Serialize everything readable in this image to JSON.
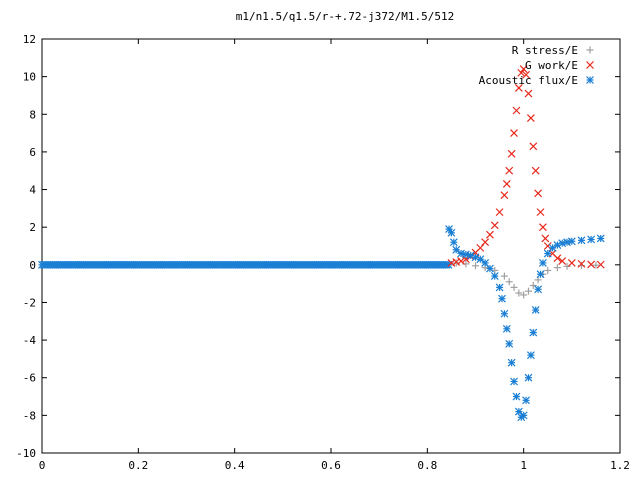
{
  "chart_data": {
    "type": "scatter",
    "title": "m1/n1.5/q1.5/r-+.72-j372/M1.5/512",
    "xlabel": "",
    "ylabel": "",
    "xlim": [
      0,
      1.2
    ],
    "ylim": [
      -10,
      12
    ],
    "x_ticks": [
      0,
      0.2,
      0.4,
      0.6,
      0.8,
      1,
      1.2
    ],
    "x_tick_labels": [
      "0",
      "0.2",
      "0.4",
      "0.6",
      "0.8",
      "1",
      "1.2"
    ],
    "y_ticks": [
      -10,
      -8,
      -6,
      -4,
      -2,
      0,
      2,
      4,
      6,
      8,
      10,
      12
    ],
    "y_tick_labels": [
      "-10",
      "-8",
      "-6",
      "-4",
      "-2",
      "0",
      "2",
      "4",
      "6",
      "8",
      "10",
      "12"
    ],
    "grid": false,
    "legend_position": "top-right",
    "series": [
      {
        "name": "R stress/E",
        "marker": "plus",
        "color": "#a0a0a0",
        "points": [
          [
            0.86,
            0.1
          ],
          [
            0.88,
            0.05
          ],
          [
            0.9,
            -0.05
          ],
          [
            0.92,
            -0.15
          ],
          [
            0.94,
            -0.3
          ],
          [
            0.96,
            -0.6
          ],
          [
            0.97,
            -0.9
          ],
          [
            0.98,
            -1.2
          ],
          [
            0.99,
            -1.5
          ],
          [
            1.0,
            -1.6
          ],
          [
            1.01,
            -1.4
          ],
          [
            1.02,
            -1.1
          ],
          [
            1.03,
            -0.8
          ],
          [
            1.04,
            -0.5
          ],
          [
            1.05,
            -0.3
          ],
          [
            1.07,
            -0.15
          ],
          [
            1.09,
            -0.08
          ],
          [
            1.12,
            -0.04
          ],
          [
            1.15,
            -0.02
          ]
        ]
      },
      {
        "name": "G work/E",
        "marker": "cross",
        "color": "#e8281c",
        "points": [
          [
            0.85,
            0.1
          ],
          [
            0.86,
            0.15
          ],
          [
            0.87,
            0.2
          ],
          [
            0.88,
            0.3
          ],
          [
            0.89,
            0.45
          ],
          [
            0.9,
            0.65
          ],
          [
            0.91,
            0.9
          ],
          [
            0.92,
            1.2
          ],
          [
            0.93,
            1.6
          ],
          [
            0.94,
            2.1
          ],
          [
            0.95,
            2.8
          ],
          [
            0.96,
            3.7
          ],
          [
            0.965,
            4.3
          ],
          [
            0.97,
            5.0
          ],
          [
            0.975,
            5.9
          ],
          [
            0.98,
            7.0
          ],
          [
            0.985,
            8.2
          ],
          [
            0.99,
            9.4
          ],
          [
            0.995,
            10.2
          ],
          [
            1.0,
            10.4
          ],
          [
            1.005,
            10.1
          ],
          [
            1.01,
            9.1
          ],
          [
            1.015,
            7.8
          ],
          [
            1.02,
            6.3
          ],
          [
            1.025,
            5.0
          ],
          [
            1.03,
            3.8
          ],
          [
            1.035,
            2.8
          ],
          [
            1.04,
            2.0
          ],
          [
            1.045,
            1.4
          ],
          [
            1.05,
            1.0
          ],
          [
            1.06,
            0.6
          ],
          [
            1.07,
            0.35
          ],
          [
            1.08,
            0.2
          ],
          [
            1.1,
            0.1
          ],
          [
            1.12,
            0.05
          ],
          [
            1.14,
            0.02
          ],
          [
            1.16,
            0.01
          ]
        ]
      },
      {
        "name": "Acoustic flux/E",
        "marker": "star",
        "color": "#1a7fd4",
        "points": [
          [
            0.845,
            1.9
          ],
          [
            0.85,
            1.7
          ],
          [
            0.855,
            1.2
          ],
          [
            0.86,
            0.8
          ],
          [
            0.87,
            0.6
          ],
          [
            0.88,
            0.55
          ],
          [
            0.89,
            0.5
          ],
          [
            0.9,
            0.4
          ],
          [
            0.91,
            0.3
          ],
          [
            0.92,
            0.1
          ],
          [
            0.93,
            -0.2
          ],
          [
            0.94,
            -0.6
          ],
          [
            0.95,
            -1.2
          ],
          [
            0.955,
            -1.8
          ],
          [
            0.96,
            -2.6
          ],
          [
            0.965,
            -3.4
          ],
          [
            0.97,
            -4.2
          ],
          [
            0.975,
            -5.2
          ],
          [
            0.98,
            -6.2
          ],
          [
            0.985,
            -7.0
          ],
          [
            0.99,
            -7.8
          ],
          [
            0.995,
            -8.1
          ],
          [
            1.0,
            -8.0
          ],
          [
            1.005,
            -7.2
          ],
          [
            1.01,
            -6.0
          ],
          [
            1.015,
            -4.8
          ],
          [
            1.02,
            -3.6
          ],
          [
            1.025,
            -2.4
          ],
          [
            1.03,
            -1.3
          ],
          [
            1.035,
            -0.5
          ],
          [
            1.04,
            0.1
          ],
          [
            1.05,
            0.6
          ],
          [
            1.06,
            0.9
          ],
          [
            1.07,
            1.05
          ],
          [
            1.08,
            1.15
          ],
          [
            1.09,
            1.2
          ],
          [
            1.1,
            1.25
          ],
          [
            1.12,
            1.3
          ],
          [
            1.14,
            1.35
          ],
          [
            1.16,
            1.4
          ]
        ]
      }
    ]
  }
}
